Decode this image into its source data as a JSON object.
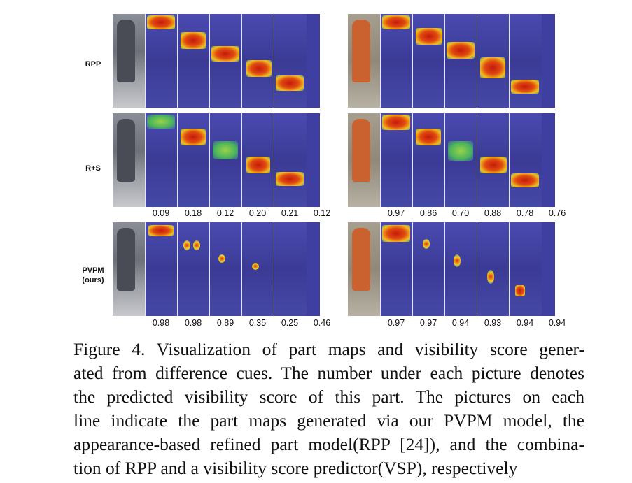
{
  "rows": [
    {
      "label": "RPP",
      "left_scores": [],
      "right_scores": []
    },
    {
      "label": "R+S",
      "left_scores": [
        "0.09",
        "0.18",
        "0.12",
        "0.20",
        "0.21",
        "0.12"
      ],
      "right_scores": [
        "0.97",
        "0.86",
        "0.70",
        "0.88",
        "0.78",
        "0.76"
      ]
    },
    {
      "label": "PVPM\n(ours)",
      "left_scores": [
        "0.98",
        "0.98",
        "0.89",
        "0.35",
        "0.25",
        "0.46"
      ],
      "right_scores": [
        "0.97",
        "0.97",
        "0.94",
        "0.93",
        "0.94",
        "0.94"
      ]
    }
  ],
  "caption": {
    "lines": [
      "Figure 4. Visualization of part maps and visibility score gener-",
      "ated from difference cues. The number under each picture denotes",
      "the predicted visibility score of this part.  The pictures on each",
      "line indicate the part maps generated via our PVPM model, the",
      "appearance-based refined part model(RPP [24]), and the combina-",
      "tion of RPP and a visibility score predictor(VSP), respectively"
    ]
  }
}
